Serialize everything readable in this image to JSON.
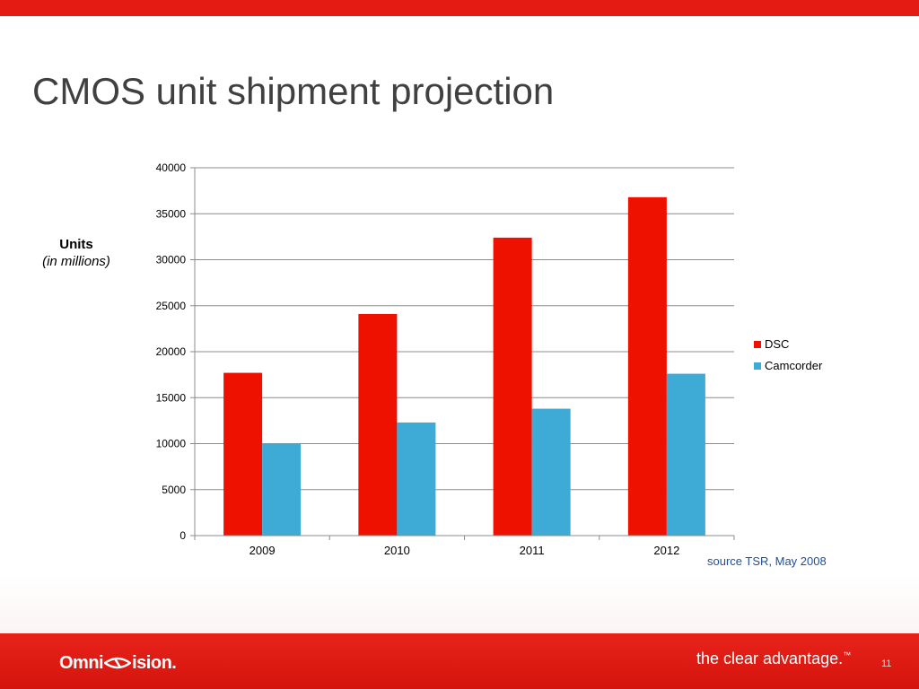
{
  "slide": {
    "title": "CMOS unit shipment projection",
    "units_label": "Units",
    "units_sublabel": "(in millions)",
    "source": "source TSR, May 2008",
    "logo_prefix": "Omni",
    "logo_suffix": "ision.",
    "tagline": "the clear advantage.",
    "tagline_mark": "™",
    "page_number": "11"
  },
  "colors": {
    "accent": "#e41b13",
    "dsc": "#ee1100",
    "camcorder": "#3eaad6",
    "grid": "#8c8c8c"
  },
  "chart_data": {
    "type": "bar",
    "title": "",
    "xlabel": "",
    "ylabel": "",
    "categories": [
      "2009",
      "2010",
      "2011",
      "2012"
    ],
    "series": [
      {
        "name": "DSC",
        "values": [
          17700,
          24100,
          32400,
          36800
        ]
      },
      {
        "name": "Camcorder",
        "values": [
          10000,
          12300,
          13800,
          17600
        ]
      }
    ],
    "ylim": [
      0,
      40000
    ],
    "yticks": [
      0,
      5000,
      10000,
      15000,
      20000,
      25000,
      30000,
      35000,
      40000
    ],
    "grid": true,
    "legend": "right"
  }
}
